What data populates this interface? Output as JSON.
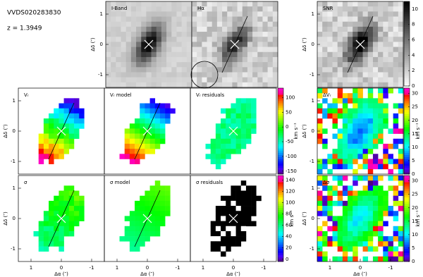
{
  "header": {
    "object": "VVDS020283830",
    "redshift": "z = 1.3949"
  },
  "panels": [
    {
      "label": "I-Band"
    },
    {
      "label": "Hα"
    },
    {
      "label": "SNR"
    },
    {
      "label": "Vᵣ"
    },
    {
      "label": "Vᵣ model"
    },
    {
      "label": "Vᵣ residuals"
    },
    {
      "label": "ΔVᵣ"
    },
    {
      "label": "σ"
    },
    {
      "label": "σ model"
    },
    {
      "label": "σ residuals"
    },
    {
      "label": "Δσ"
    }
  ],
  "y_axis": {
    "label": "Δδ (″)",
    "ticks": [
      1,
      0,
      -1
    ]
  },
  "x_axis": {
    "label": "Δα (″)",
    "ticks": [
      1,
      0,
      -1
    ]
  },
  "colorbars": [
    {
      "lim": [
        0,
        11
      ],
      "ticks": [
        0,
        2,
        4,
        6,
        8,
        10
      ]
    },
    {
      "lim": [
        -160,
        132
      ],
      "ticks": [
        100,
        50,
        0,
        -50,
        -100,
        -150
      ],
      "unit": "km s⁻¹"
    },
    {
      "lim": [
        -4,
        148
      ],
      "ticks": [
        140,
        120,
        100,
        80,
        60,
        40,
        20,
        0
      ],
      "unit": "km s⁻¹"
    },
    {
      "lim": [
        0,
        32
      ],
      "ticks": [
        30,
        25,
        20,
        15,
        10,
        5,
        0
      ],
      "unit": "km s⁻¹"
    },
    {
      "lim": [
        0,
        32
      ],
      "ticks": [
        30,
        25,
        20,
        15,
        10,
        5,
        0
      ],
      "unit": "km s⁻¹"
    }
  ]
}
